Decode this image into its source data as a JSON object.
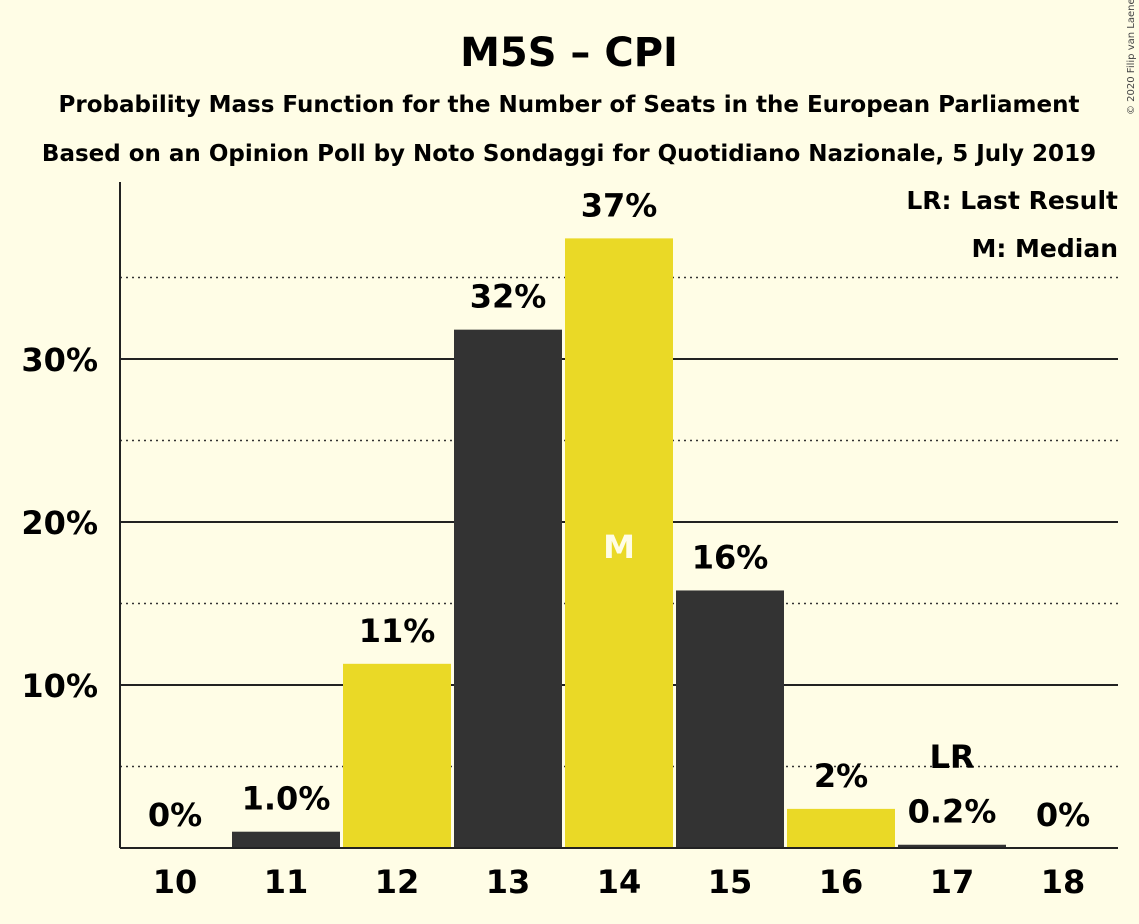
{
  "chart_data": {
    "type": "bar",
    "title": "M5S – CPI",
    "subtitle": "Probability Mass Function for the Number of Seats in the European Parliament",
    "subtitle2": "Based on an Opinion Poll by Noto Sondaggi for Quotidiano Nazionale, 5 July 2019",
    "copyright": "© 2020 Filip van Laenen",
    "categories": [
      "10",
      "11",
      "12",
      "13",
      "14",
      "15",
      "16",
      "17",
      "18"
    ],
    "values": [
      0,
      1.0,
      11.3,
      31.8,
      37.4,
      15.8,
      2.4,
      0.2,
      0
    ],
    "value_labels": [
      "0%",
      "1.0%",
      "11%",
      "32%",
      "37%",
      "16%",
      "2%",
      "0.2%",
      "0%"
    ],
    "bar_colors": [
      "#333333",
      "#333333",
      "#ead926",
      "#333333",
      "#ead926",
      "#333333",
      "#ead926",
      "#333333",
      "#ead926"
    ],
    "ylim": [
      0,
      40
    ],
    "y_ticks": [
      10,
      20,
      30
    ],
    "y_tick_labels": [
      "10%",
      "20%",
      "30%"
    ],
    "y_minor_ticks": [
      5,
      15,
      25,
      35
    ],
    "grid": true,
    "median_index": 4,
    "median_marker": "M",
    "last_result_index": 7,
    "last_result_marker": "LR",
    "legend": [
      "LR: Last Result",
      "M: Median"
    ],
    "legend_position": "top-right"
  },
  "colors": {
    "background": "#fffde6",
    "dark": "#333333",
    "accent": "#ead926",
    "text": "#222222"
  }
}
